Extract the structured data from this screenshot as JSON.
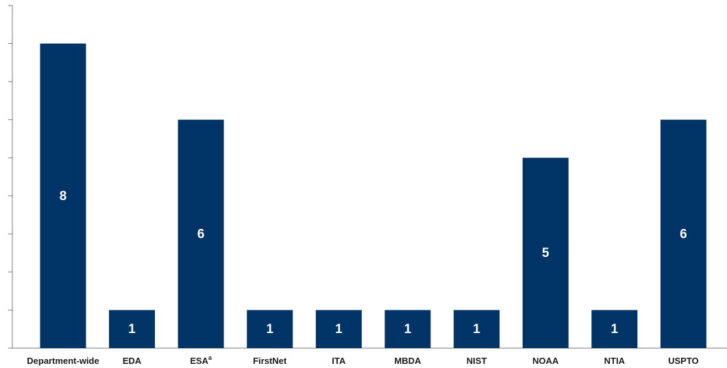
{
  "chart_data": {
    "type": "bar",
    "categories": [
      "Department-wide",
      "EDA",
      "ESA",
      "FirstNet",
      "ITA",
      "MBDA",
      "NIST",
      "NOAA",
      "NTIA",
      "USPTO"
    ],
    "category_superscripts": {
      "ESA": "a"
    },
    "values": [
      8,
      1,
      6,
      1,
      1,
      1,
      1,
      5,
      1,
      6
    ],
    "ylim": [
      0,
      9
    ],
    "y_tick_step": 1,
    "y_tick_labels_shown": false,
    "grid": false,
    "legend": "none",
    "title": "",
    "xlabel": "",
    "ylabel": "",
    "colors": {
      "bar": "#003366",
      "value_label": "#ffffff",
      "axis": "#777777",
      "category_label": "#1a1a1a"
    }
  }
}
